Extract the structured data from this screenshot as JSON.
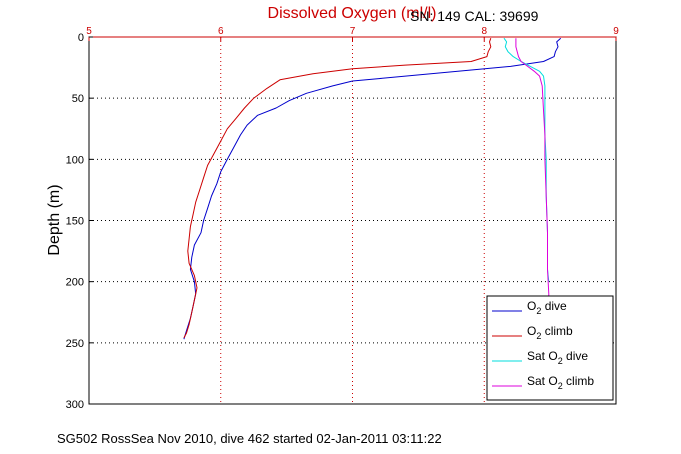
{
  "chart_data": {
    "type": "line",
    "title": "Dissolved Oxygen (ml/l)",
    "annotation": "SN: 149  CAL: 39699",
    "ylabel": "Depth (m)",
    "xlim": [
      5,
      9
    ],
    "ylim": [
      300,
      0
    ],
    "x_ticks": [
      "5",
      "6",
      "7",
      "8",
      "9"
    ],
    "y_ticks": [
      "0",
      "50",
      "100",
      "150",
      "200",
      "250",
      "300"
    ],
    "grid": true,
    "legend_position": "bottom-right",
    "series": [
      {
        "name": "O₂ dive",
        "label_main": "O",
        "label_sub": "2",
        "label_rest": " dive",
        "color": "#0000cc",
        "points": [
          [
            8.58,
            1
          ],
          [
            8.55,
            4
          ],
          [
            8.56,
            8
          ],
          [
            8.54,
            12
          ],
          [
            8.53,
            16
          ],
          [
            8.45,
            20
          ],
          [
            8.2,
            24
          ],
          [
            7.8,
            28
          ],
          [
            7.2,
            34
          ],
          [
            7.0,
            36
          ],
          [
            6.85,
            40
          ],
          [
            6.65,
            46
          ],
          [
            6.52,
            52
          ],
          [
            6.42,
            58
          ],
          [
            6.28,
            64
          ],
          [
            6.2,
            72
          ],
          [
            6.15,
            80
          ],
          [
            6.1,
            90
          ],
          [
            6.05,
            100
          ],
          [
            6.0,
            110
          ],
          [
            5.97,
            120
          ],
          [
            5.93,
            130
          ],
          [
            5.9,
            140
          ],
          [
            5.87,
            150
          ],
          [
            5.85,
            160
          ],
          [
            5.8,
            170
          ],
          [
            5.78,
            180
          ],
          [
            5.77,
            190
          ],
          [
            5.8,
            200
          ],
          [
            5.81,
            210
          ],
          [
            5.79,
            220
          ],
          [
            5.77,
            230
          ],
          [
            5.74,
            240
          ],
          [
            5.72,
            247
          ]
        ]
      },
      {
        "name": "O₂ climb",
        "label_main": "O",
        "label_sub": "2",
        "label_rest": " climb",
        "color": "#cc0000",
        "points": [
          [
            8.05,
            1
          ],
          [
            8.04,
            4
          ],
          [
            8.05,
            8
          ],
          [
            8.03,
            12
          ],
          [
            8.02,
            16
          ],
          [
            7.9,
            20
          ],
          [
            7.4,
            23
          ],
          [
            7.0,
            26
          ],
          [
            6.7,
            30
          ],
          [
            6.45,
            35
          ],
          [
            6.35,
            42
          ],
          [
            6.25,
            50
          ],
          [
            6.18,
            58
          ],
          [
            6.12,
            66
          ],
          [
            6.05,
            75
          ],
          [
            6.0,
            85
          ],
          [
            5.95,
            95
          ],
          [
            5.9,
            105
          ],
          [
            5.87,
            115
          ],
          [
            5.84,
            125
          ],
          [
            5.81,
            135
          ],
          [
            5.79,
            145
          ],
          [
            5.77,
            155
          ],
          [
            5.76,
            165
          ],
          [
            5.75,
            175
          ],
          [
            5.76,
            185
          ],
          [
            5.8,
            195
          ],
          [
            5.82,
            205
          ],
          [
            5.8,
            215
          ],
          [
            5.78,
            225
          ],
          [
            5.76,
            235
          ],
          [
            5.74,
            242
          ],
          [
            5.72,
            246
          ]
        ]
      },
      {
        "name": "Sat O₂ dive",
        "label_main": "Sat O",
        "label_sub": "2",
        "label_rest": " dive",
        "color": "#00dddd",
        "points": [
          [
            8.15,
            1
          ],
          [
            8.17,
            4
          ],
          [
            8.16,
            8
          ],
          [
            8.18,
            12
          ],
          [
            8.22,
            16
          ],
          [
            8.28,
            20
          ],
          [
            8.35,
            24
          ],
          [
            8.42,
            28
          ],
          [
            8.45,
            32
          ],
          [
            8.46,
            40
          ],
          [
            8.46,
            60
          ],
          [
            8.46,
            80
          ],
          [
            8.47,
            100
          ],
          [
            8.47,
            130
          ],
          [
            8.48,
            160
          ],
          [
            8.48,
            190
          ],
          [
            8.49,
            200
          ]
        ]
      },
      {
        "name": "Sat O₂ climb",
        "label_main": "Sat O",
        "label_sub": "2",
        "label_rest": " climb",
        "color": "#dd00dd",
        "points": [
          [
            8.24,
            1
          ],
          [
            8.24,
            4
          ],
          [
            8.24,
            8
          ],
          [
            8.25,
            12
          ],
          [
            8.26,
            16
          ],
          [
            8.28,
            20
          ],
          [
            8.33,
            24
          ],
          [
            8.38,
            28
          ],
          [
            8.42,
            32
          ],
          [
            8.44,
            40
          ],
          [
            8.45,
            60
          ],
          [
            8.46,
            80
          ],
          [
            8.46,
            100
          ],
          [
            8.47,
            130
          ],
          [
            8.48,
            160
          ],
          [
            8.48,
            190
          ],
          [
            8.49,
            210
          ],
          [
            8.49,
            215
          ]
        ]
      }
    ]
  },
  "caption": "SG502 RossSea Nov 2010, dive 462 started 02-Jan-2011 03:11:22"
}
